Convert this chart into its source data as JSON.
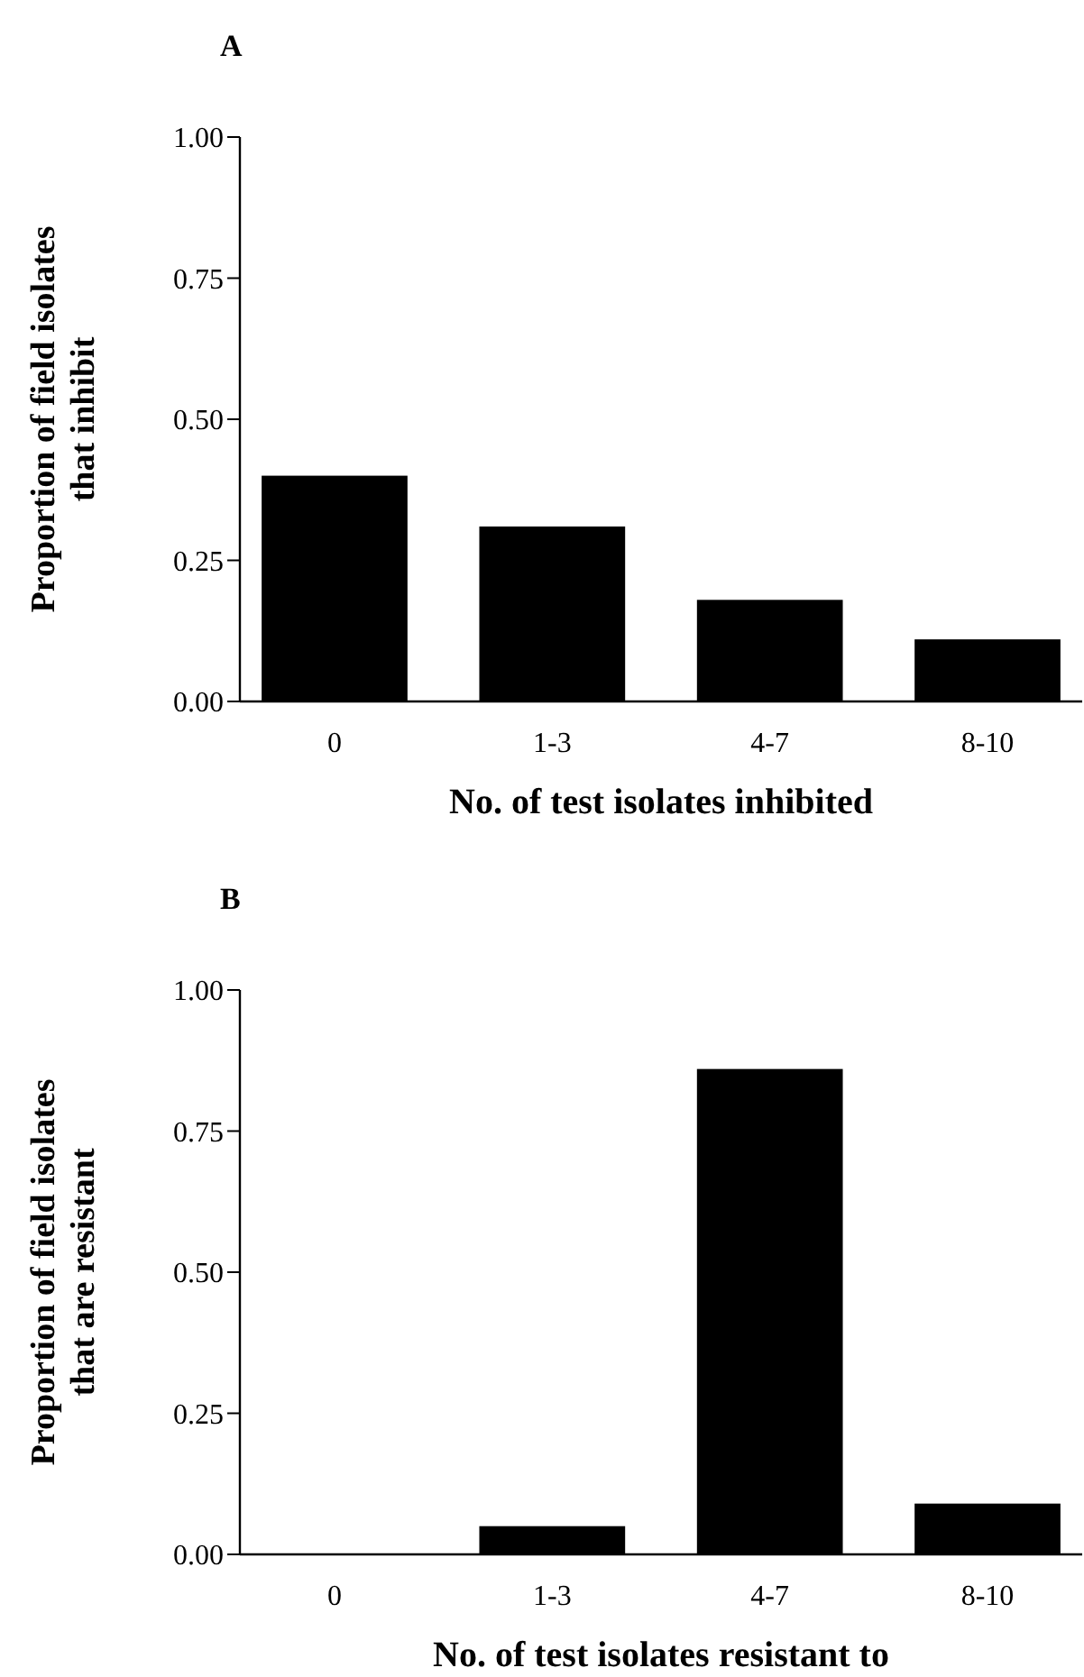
{
  "chart_data": [
    {
      "type": "bar",
      "title": "A",
      "categories": [
        "0",
        "1-3",
        "4-7",
        "8-10"
      ],
      "values": [
        0.4,
        0.31,
        0.18,
        0.11
      ],
      "color": "#000000",
      "xlabel": "No. of test isolates inhibited",
      "ylabel": "Proportion of field isolates\nthat inhibit",
      "ylim": [
        0,
        1
      ],
      "yticks": [
        {
          "value": 0,
          "label": "0.00"
        },
        {
          "value": 0.25,
          "label": "0.25"
        },
        {
          "value": 0.5,
          "label": "0.50"
        },
        {
          "value": 0.75,
          "label": "0.75"
        },
        {
          "value": 1,
          "label": "1.00"
        }
      ]
    },
    {
      "type": "bar",
      "title": "B",
      "categories": [
        "0",
        "1-3",
        "4-7",
        "8-10"
      ],
      "values": [
        0,
        0.05,
        0.86,
        0.09
      ],
      "color": "#000000",
      "xlabel": "No. of test isolates resistant to",
      "ylabel": "Proportion of field isolates\nthat are resistant",
      "ylim": [
        0,
        1
      ],
      "yticks": [
        {
          "value": 0,
          "label": "0.00"
        },
        {
          "value": 0.25,
          "label": "0.25"
        },
        {
          "value": 0.5,
          "label": "0.50"
        },
        {
          "value": 0.75,
          "label": "0.75"
        },
        {
          "value": 1,
          "label": "1.00"
        }
      ]
    }
  ]
}
